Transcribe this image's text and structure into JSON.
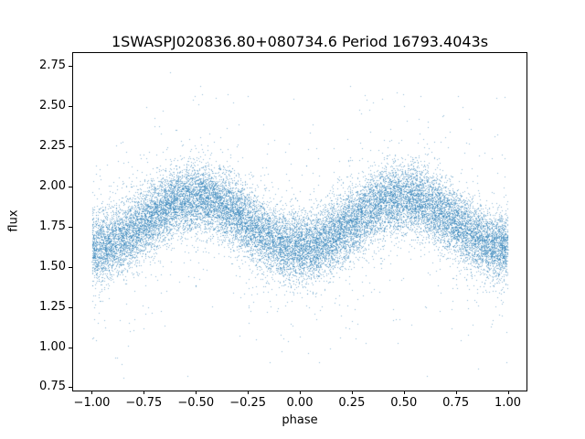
{
  "chart_data": {
    "type": "scatter",
    "title": "1SWASPJ020836.80+080734.6 Period 16793.4043s",
    "xlabel": "phase",
    "ylabel": "flux",
    "xlim": [
      -1.09,
      1.09
    ],
    "ylim": [
      0.73,
      2.83
    ],
    "grid": false,
    "legend": null,
    "marker_color": "#1f77b4",
    "marker_alpha": 0.5,
    "marker_size_px": 1,
    "xticks": [
      {
        "value": -1.0,
        "label": "−1.00"
      },
      {
        "value": -0.75,
        "label": "−0.75"
      },
      {
        "value": -0.5,
        "label": "−0.50"
      },
      {
        "value": -0.25,
        "label": "−0.25"
      },
      {
        "value": 0.0,
        "label": "0.00"
      },
      {
        "value": 0.25,
        "label": "0.25"
      },
      {
        "value": 0.5,
        "label": "0.50"
      },
      {
        "value": 0.75,
        "label": "0.75"
      },
      {
        "value": 1.0,
        "label": "1.00"
      }
    ],
    "yticks": [
      {
        "value": 0.75,
        "label": "0.75"
      },
      {
        "value": 1.0,
        "label": "1.00"
      },
      {
        "value": 1.25,
        "label": "1.25"
      },
      {
        "value": 1.5,
        "label": "1.50"
      },
      {
        "value": 1.75,
        "label": "1.75"
      },
      {
        "value": 2.0,
        "label": "2.00"
      },
      {
        "value": 2.25,
        "label": "2.25"
      },
      {
        "value": 2.5,
        "label": "2.50"
      },
      {
        "value": 2.75,
        "label": "2.75"
      }
    ],
    "model": {
      "description": "Phase-folded light curve scatter: flux = mean_flux - amplitude*cos(2*pi*phase) + gaussian noise; maxima near phase +/-0.5 (flux ~1.93), minima near phase 0 and +/-1 (flux ~1.62); sparse outlier halo spanning ~0.75 to ~2.78",
      "phase_range": [
        -1.0,
        1.0
      ],
      "n_points": 22000,
      "mean_flux": 1.775,
      "amplitude": 0.155,
      "peak_flux": 1.93,
      "trough_flux": 1.62,
      "noise_sigma": 0.105,
      "outlier_fraction": 0.05,
      "outlier_sigma": 0.33,
      "flux_min": 0.74,
      "flux_max": 2.78,
      "seed": 7
    }
  }
}
